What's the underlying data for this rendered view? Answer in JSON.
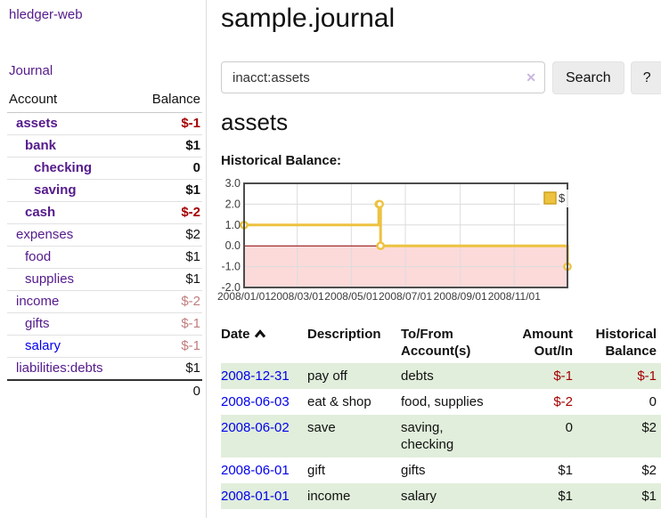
{
  "app": {
    "title": "hledger-web",
    "nav_journal": "Journal"
  },
  "colors": {
    "accent_purple": "#551a8b",
    "link_blue": "#0000ee",
    "negative_strong": "#a40000",
    "negative_soft": "#c17d7d",
    "row_green": "#e1eedb",
    "chart_line": "#edc240",
    "chart_negative_region": "#fcdada",
    "chart_zero_line": "#8b0000"
  },
  "sidebar": {
    "header": {
      "account": "Account",
      "balance": "Balance"
    },
    "accounts": [
      {
        "name": "assets",
        "level": 1,
        "bold": true,
        "balance": "$-1",
        "balance_style": "neg-strong"
      },
      {
        "name": "bank",
        "level": 2,
        "bold": true,
        "balance": "$1",
        "balance_style": "pos"
      },
      {
        "name": "checking",
        "level": 3,
        "bold": true,
        "balance": "0",
        "balance_style": "pos"
      },
      {
        "name": "saving",
        "level": 3,
        "bold": true,
        "balance": "$1",
        "balance_style": "pos"
      },
      {
        "name": "cash",
        "level": 2,
        "bold": true,
        "balance": "$-2",
        "balance_style": "neg-strong"
      },
      {
        "name": "expenses",
        "level": 1,
        "bold": false,
        "balance": "$2",
        "balance_style": "pos"
      },
      {
        "name": "food",
        "level": 2,
        "bold": false,
        "balance": "$1",
        "balance_style": "pos"
      },
      {
        "name": "supplies",
        "level": 2,
        "bold": false,
        "balance": "$1",
        "balance_style": "pos"
      },
      {
        "name": "income",
        "level": 1,
        "bold": false,
        "balance": "$-2",
        "balance_style": "neg-soft"
      },
      {
        "name": "gifts",
        "level": 2,
        "bold": false,
        "balance": "$-1",
        "balance_style": "neg-soft"
      },
      {
        "name": "salary",
        "level": 2,
        "bold": false,
        "link_style": "unvisited",
        "balance": "$-1",
        "balance_style": "neg-soft"
      },
      {
        "name": "liabilities:debts",
        "level": 1,
        "bold": false,
        "balance": "$1",
        "balance_style": "pos"
      }
    ],
    "total": "0"
  },
  "header": {
    "title": "sample.journal"
  },
  "search": {
    "value": "inacct:assets",
    "clear_icon": "✕",
    "button_label": "Search",
    "help_label": "?"
  },
  "account_page": {
    "heading": "assets",
    "chart_title": "Historical Balance:"
  },
  "chart_data": {
    "type": "line",
    "step": true,
    "title": "Historical Balance:",
    "ylim": [
      -2,
      3
    ],
    "xlim": [
      "2008-01-01",
      "2008-12-31"
    ],
    "grid": true,
    "legend_position": "top-right",
    "negative_region_shaded": true,
    "yticks": [
      {
        "label": "3.0",
        "value": 3
      },
      {
        "label": "2.0",
        "value": 2
      },
      {
        "label": "1.0",
        "value": 1
      },
      {
        "label": "0.0",
        "value": 0
      },
      {
        "label": "-1.0",
        "value": -1
      },
      {
        "label": "-2.0",
        "value": -2
      }
    ],
    "xticks": [
      {
        "label": "2008/01/01",
        "date": "2008-01-01"
      },
      {
        "label": "2008/03/01",
        "date": "2008-03-01"
      },
      {
        "label": "2008/05/01",
        "date": "2008-05-01"
      },
      {
        "label": "2008/07/01",
        "date": "2008-07-01"
      },
      {
        "label": "2008/09/01",
        "date": "2008-09-01"
      },
      {
        "label": "2008/11/01",
        "date": "2008-11-01"
      }
    ],
    "series": [
      {
        "name": "$",
        "color": "#edc240",
        "points": [
          [
            "2008-01-01",
            1
          ],
          [
            "2008-06-01",
            2
          ],
          [
            "2008-06-02",
            2
          ],
          [
            "2008-06-03",
            0
          ],
          [
            "2008-12-31",
            -1
          ]
        ]
      }
    ]
  },
  "register": {
    "headers": [
      {
        "label": "Date",
        "sortable": true,
        "align": "left"
      },
      {
        "label": "Description",
        "align": "left"
      },
      {
        "label": "To/From\nAccount(s)",
        "align": "left"
      },
      {
        "label": "Amount\nOut/In",
        "align": "right"
      },
      {
        "label": "Historical\nBalance",
        "align": "right"
      }
    ],
    "rows": [
      {
        "date": "2008-12-31",
        "description": "pay off",
        "accounts": "debts",
        "amount": "$-1",
        "amount_style": "neg-strong",
        "balance": "$-1",
        "balance_style": "neg-strong",
        "green": true
      },
      {
        "date": "2008-06-03",
        "description": "eat & shop",
        "accounts": "food, supplies",
        "amount": "$-2",
        "amount_style": "neg-strong",
        "balance": "0",
        "balance_style": "pos",
        "green": false
      },
      {
        "date": "2008-06-02",
        "description": "save",
        "accounts": "saving,\nchecking",
        "amount": "0",
        "amount_style": "pos",
        "balance": "$2",
        "balance_style": "pos",
        "green": true
      },
      {
        "date": "2008-06-01",
        "description": "gift",
        "accounts": "gifts",
        "amount": "$1",
        "amount_style": "pos",
        "balance": "$2",
        "balance_style": "pos",
        "green": false
      },
      {
        "date": "2008-01-01",
        "description": "income",
        "accounts": "salary",
        "amount": "$1",
        "amount_style": "pos",
        "balance": "$1",
        "balance_style": "pos",
        "green": true
      }
    ]
  }
}
